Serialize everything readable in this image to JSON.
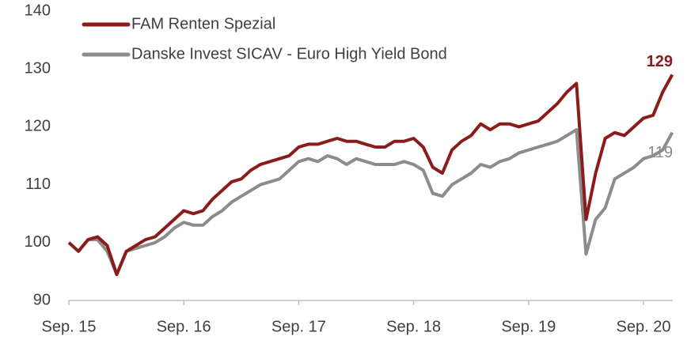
{
  "chart_data": {
    "type": "line",
    "categories": [
      "Sep. 15",
      null,
      null,
      null,
      null,
      null,
      null,
      null,
      null,
      null,
      null,
      null,
      "Sep. 16",
      null,
      null,
      null,
      null,
      null,
      null,
      null,
      null,
      null,
      null,
      null,
      "Sep. 17",
      null,
      null,
      null,
      null,
      null,
      null,
      null,
      null,
      null,
      null,
      null,
      "Sep. 18",
      null,
      null,
      null,
      null,
      null,
      null,
      null,
      null,
      null,
      null,
      null,
      "Sep. 19",
      null,
      null,
      null,
      null,
      null,
      null,
      null,
      null,
      null,
      null,
      null,
      "Sep. 20",
      null,
      null,
      null
    ],
    "series": [
      {
        "name": "FAM Renten Spezial",
        "color": "#8b1c1c",
        "end_label": "129",
        "values": [
          100,
          98.5,
          100.5,
          101,
          99.5,
          94.5,
          98.5,
          99.5,
          100.5,
          101,
          102.5,
          104,
          105.5,
          105,
          105.5,
          107.5,
          109,
          110.5,
          111,
          112.5,
          113.5,
          114,
          114.5,
          115,
          116.5,
          117,
          117,
          117.5,
          118,
          117.5,
          117.5,
          117,
          116.5,
          116.5,
          117.5,
          117.5,
          118,
          116.5,
          113,
          112,
          116,
          117.5,
          118.5,
          120.5,
          119.5,
          120.5,
          120.5,
          120,
          120.5,
          121,
          122.5,
          124,
          126,
          127.5,
          104,
          112,
          118,
          119,
          118.5,
          120,
          121.5,
          122,
          126,
          129
        ]
      },
      {
        "name": "Danske Invest SICAV - Euro High Yield Bond",
        "color": "#8c8c8c",
        "end_label": "119",
        "values": [
          100,
          98.5,
          100.5,
          100.5,
          98.5,
          94.5,
          98.5,
          99,
          99.5,
          100,
          101,
          102.5,
          103.5,
          103,
          103,
          104.5,
          105.5,
          107,
          108,
          109,
          110,
          110.5,
          111,
          112.5,
          114,
          114.5,
          114,
          115,
          114.5,
          113.5,
          114.5,
          114,
          113.5,
          113.5,
          113.5,
          114,
          113.5,
          112.5,
          108.5,
          108,
          110,
          111,
          112,
          113.5,
          113,
          114,
          114.5,
          115.5,
          116,
          116.5,
          117,
          117.5,
          118.5,
          119.5,
          98,
          104,
          106,
          111,
          112,
          113,
          114.5,
          115,
          116,
          119
        ]
      }
    ],
    "ylim": [
      90,
      140
    ],
    "yticks": [
      90,
      100,
      110,
      120,
      130,
      140
    ],
    "grid": false,
    "legend": "top-left"
  }
}
